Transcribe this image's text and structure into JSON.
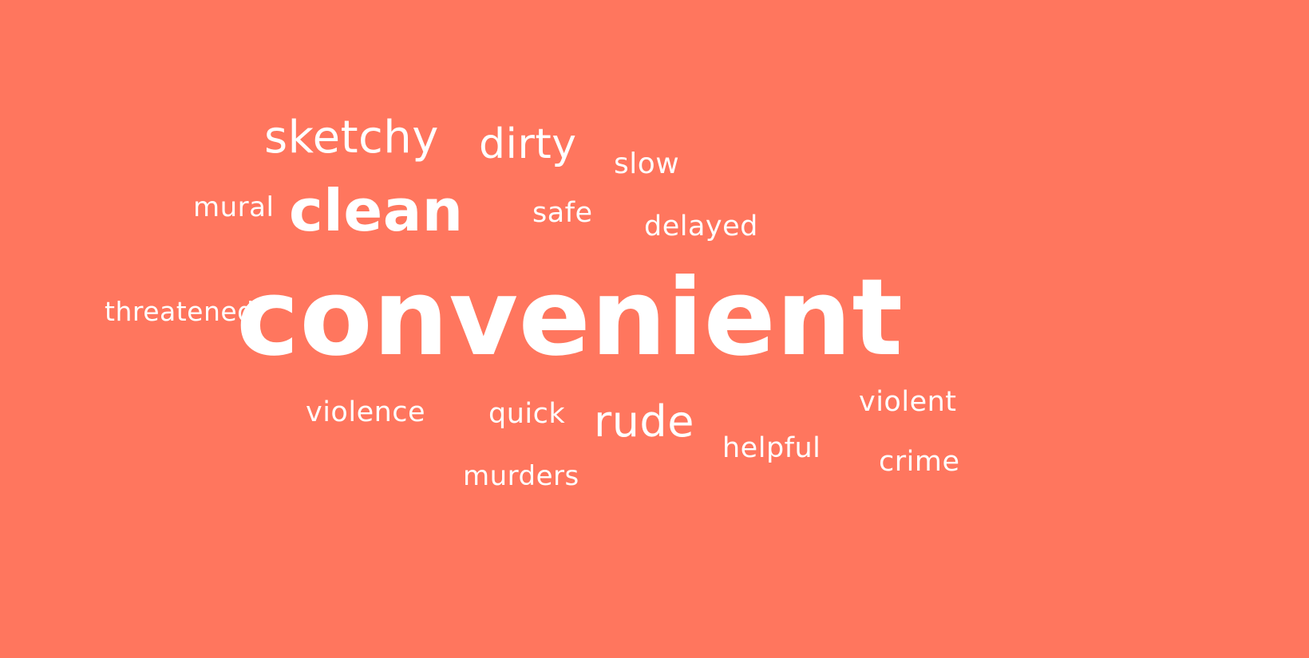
{
  "background_color": "#FF765E",
  "text_color": "#FFFFFF",
  "words": {
    "sketchy": "sketchy",
    "dirty": "dirty",
    "slow": "slow",
    "mural": "mural",
    "clean": "clean",
    "safe": "safe",
    "delayed": "delayed",
    "threatened": "threatened",
    "convenient": "convenient",
    "violence": "violence",
    "quick": "quick",
    "rude": "rude",
    "violent": "violent",
    "helpful": "helpful",
    "crime": "crime",
    "murders": "murders"
  }
}
